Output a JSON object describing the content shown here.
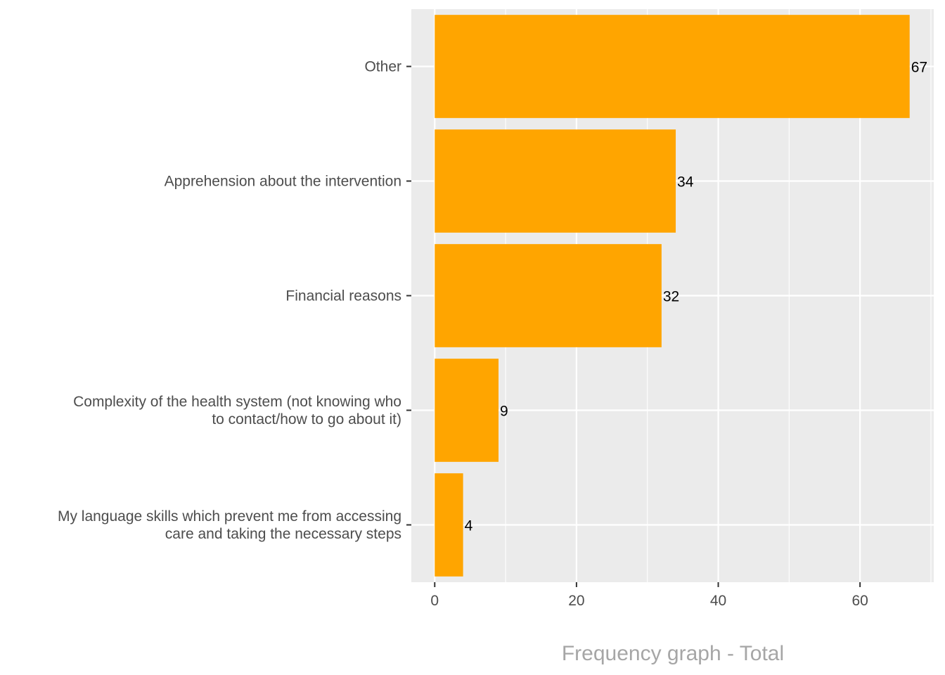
{
  "chart_data": {
    "type": "bar",
    "orientation": "horizontal",
    "categories": [
      [
        "Other"
      ],
      [
        "Apprehension about the intervention"
      ],
      [
        "Financial reasons"
      ],
      [
        "Complexity of the health system (not knowing who",
        "to contact/how to go about it)"
      ],
      [
        "My language skills which prevent me from accessing",
        "care and taking the necessary steps"
      ]
    ],
    "values": [
      67,
      34,
      32,
      9,
      4
    ],
    "data_labels": [
      "67",
      "34",
      "32",
      "9",
      "4"
    ],
    "xlim": [
      -3.3,
      70.4
    ],
    "xticks": [
      0,
      20,
      40,
      60
    ],
    "xtick_labels": [
      "0",
      "20",
      "40",
      "60"
    ],
    "caption": "Frequency graph - Total",
    "grid": true,
    "bar_color": "#FFA500",
    "panel_color": "#EBEBEB",
    "grid_color": "#FFFFFF"
  }
}
